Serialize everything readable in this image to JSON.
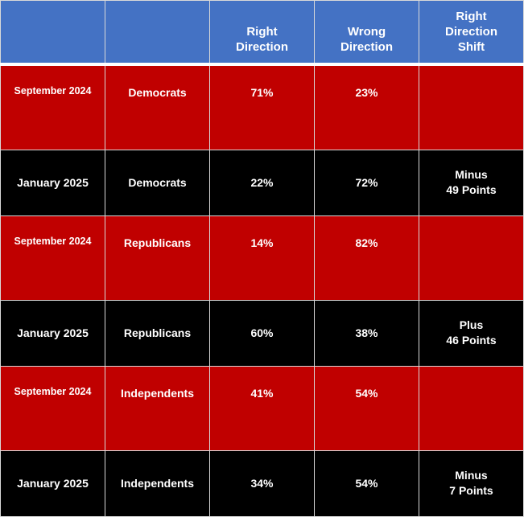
{
  "colors": {
    "header": "#4472C4",
    "september_row": "#C00000",
    "january_row": "#000000"
  },
  "headers": [
    "",
    "",
    "Right\nDirection",
    "Wrong\nDirection",
    "Right\nDirection\nShift"
  ],
  "rows": [
    {
      "period": "September 2024",
      "group": "Democrats",
      "right": "71%",
      "wrong": "23%",
      "shift": ""
    },
    {
      "period": "January 2025",
      "group": "Democrats",
      "right": "22%",
      "wrong": "72%",
      "shift": "Minus\n49 Points"
    },
    {
      "period": "September 2024",
      "group": "Republicans",
      "right": "14%",
      "wrong": "82%",
      "shift": ""
    },
    {
      "period": "January 2025",
      "group": "Republicans",
      "right": "60%",
      "wrong": "38%",
      "shift": "Plus\n46 Points"
    },
    {
      "period": "September 2024",
      "group": "Independents",
      "right": "41%",
      "wrong": "54%",
      "shift": ""
    },
    {
      "period": "January 2025",
      "group": "Independents",
      "right": "34%",
      "wrong": "54%",
      "shift": "Minus\n7 Points"
    }
  ]
}
